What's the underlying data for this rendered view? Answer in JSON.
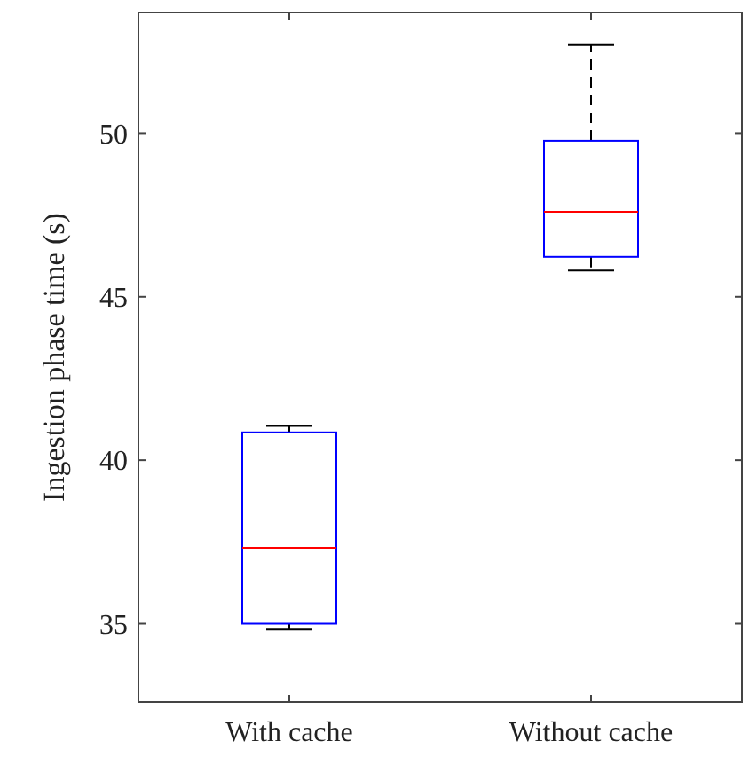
{
  "chart_data": {
    "type": "box",
    "ylabel": "Ingestion phase time (s)",
    "categories": [
      "With cache",
      "Without cache"
    ],
    "boxes": [
      {
        "low": 34.82,
        "q1": 35.0,
        "median": 37.32,
        "q3": 40.85,
        "high": 41.05
      },
      {
        "low": 45.8,
        "q1": 46.22,
        "median": 47.6,
        "q3": 49.77,
        "high": 52.7
      }
    ],
    "ylim": [
      32.6,
      53.7
    ],
    "yticks": [
      35,
      40,
      45,
      50
    ],
    "grid": false
  }
}
